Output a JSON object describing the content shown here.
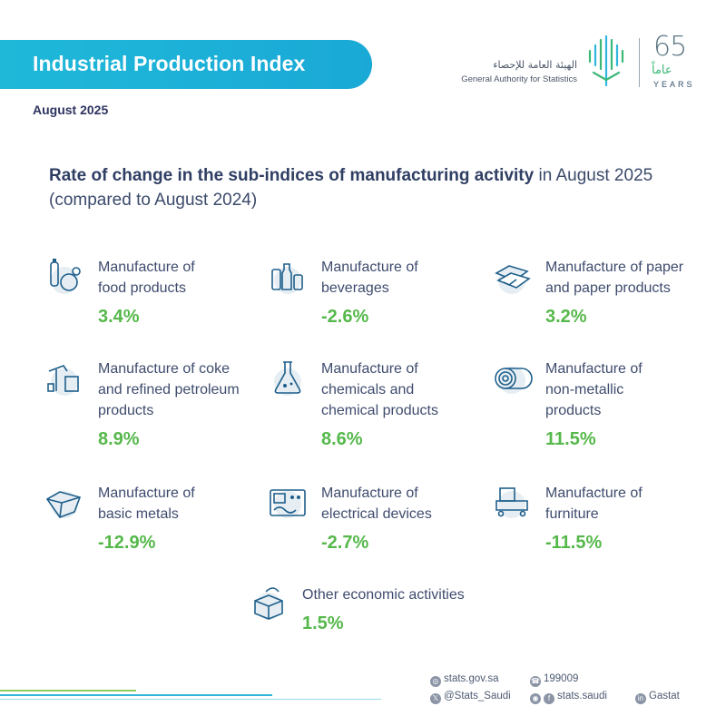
{
  "header": {
    "title": "Industrial Production Index",
    "date": "August 2025"
  },
  "organization": {
    "name_ar": "الهيئة العامة للإحصاء",
    "name_en": "General Authority for Statistics",
    "anniversary_number": "65",
    "anniversary_ar": "عاماً",
    "anniversary_en": "YEARS",
    "brand_colors": {
      "green": "#3cb878",
      "blue": "#1fb8d9",
      "grey": "#5c7784"
    }
  },
  "subtitle": {
    "strong": "Rate of change in the sub-indices of manufacturing activity",
    "line1_rest": " in August 2025",
    "line2": "(compared to August 2024)"
  },
  "accent_colors": {
    "value_green": "#55b84a",
    "banner": "#1fb8d9"
  },
  "items": [
    {
      "icon": "food-icon",
      "label_lines": [
        "Manufacture of",
        "food products"
      ],
      "value": "3.4%",
      "value_num": 3.4
    },
    {
      "icon": "beverages-icon",
      "label_lines": [
        "Manufacture of",
        "beverages"
      ],
      "value": "-2.6%",
      "value_num": -2.6
    },
    {
      "icon": "paper-icon",
      "label_lines": [
        "Manufacture of paper",
        "and paper products"
      ],
      "value": "3.2%",
      "value_num": 3.2
    },
    {
      "icon": "petroleum-icon",
      "label_lines": [
        "Manufacture of coke",
        "and refined petroleum",
        "products"
      ],
      "value": "8.9%",
      "value_num": 8.9
    },
    {
      "icon": "chemicals-icon",
      "label_lines": [
        "Manufacture of",
        "chemicals and",
        "chemical products"
      ],
      "value": "8.6%",
      "value_num": 8.6
    },
    {
      "icon": "non-metallic-icon",
      "label_lines": [
        "Manufacture of",
        "non-metallic",
        "products"
      ],
      "value": "11.5%",
      "value_num": 11.5
    },
    {
      "icon": "basic-metals-icon",
      "label_lines": [
        "Manufacture of",
        "basic metals"
      ],
      "value": "-12.9%",
      "value_num": -12.9
    },
    {
      "icon": "electrical-devices-icon",
      "label_lines": [
        "Manufacture of",
        "electrical devices"
      ],
      "value": "-2.7%",
      "value_num": -2.7
    },
    {
      "icon": "furniture-icon",
      "label_lines": [
        "Manufacture of",
        "furniture"
      ],
      "value": "-11.5%",
      "value_num": -11.5
    },
    {
      "icon": "other-activities-icon",
      "label_lines": [
        "Other economic activities"
      ],
      "value": "1.5%",
      "value_num": 1.5
    }
  ],
  "footer": {
    "website": "stats.gov.sa",
    "phone": "199009",
    "x_handle": "@Stats_Saudi",
    "social_handle": "stats.saudi",
    "linkedin": "Gastat"
  }
}
